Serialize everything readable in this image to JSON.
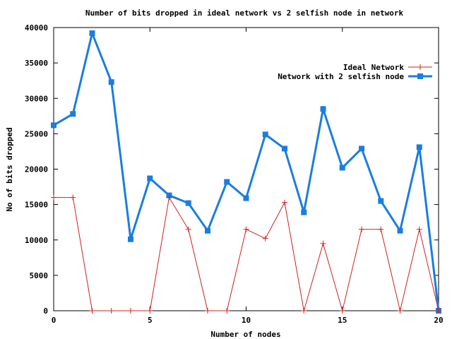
{
  "chart_data": {
    "type": "line",
    "title": "Number of bits dropped in ideal network vs 2 selfish node in network",
    "xlabel": "Number of nodes",
    "ylabel": "No of bits dropped",
    "xlim": [
      0,
      20
    ],
    "ylim": [
      0,
      40000
    ],
    "xticks": [
      0,
      5,
      10,
      15,
      20
    ],
    "yticks": [
      0,
      5000,
      10000,
      15000,
      20000,
      25000,
      30000,
      35000,
      40000
    ],
    "grid": false,
    "legend_position": "top-right",
    "series": [
      {
        "name": "Ideal Network",
        "color": "#cc2222",
        "marker": "plus",
        "x": [
          0,
          1,
          2,
          3,
          4,
          5,
          6,
          7,
          8,
          9,
          10,
          11,
          12,
          13,
          14,
          15,
          16,
          17,
          18,
          19,
          20
        ],
        "values": [
          16000,
          16000,
          0,
          0,
          0,
          0,
          16000,
          11500,
          0,
          0,
          11500,
          10200,
          15300,
          0,
          9500,
          0,
          11500,
          11500,
          0,
          11500,
          0
        ]
      },
      {
        "name": "Network with 2 selfish node",
        "color": "#1a7de0",
        "marker": "square",
        "x": [
          0,
          1,
          2,
          3,
          4,
          5,
          6,
          7,
          8,
          9,
          10,
          11,
          12,
          13,
          14,
          15,
          16,
          17,
          18,
          19,
          20
        ],
        "values": [
          26200,
          27800,
          39200,
          32300,
          10100,
          18700,
          16300,
          15200,
          11300,
          18200,
          15900,
          24900,
          22900,
          13900,
          28500,
          20200,
          22900,
          15500,
          11300,
          23100,
          0
        ]
      }
    ]
  }
}
